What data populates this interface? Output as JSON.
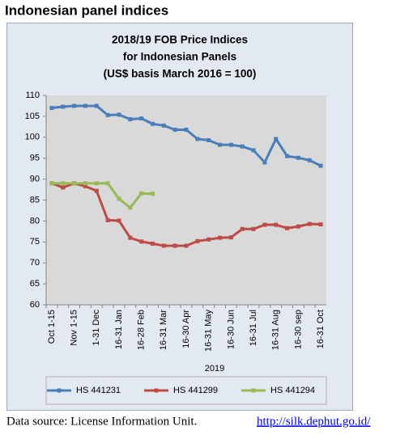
{
  "heading": "Indonesian panel indices",
  "chart_data": {
    "type": "line",
    "title": [
      "2018/19 FOB Price Indices",
      "for Indonesian Panels",
      "(US$ basis March 2016 = 100)"
    ],
    "x_label": "2019",
    "categories": [
      "Oct 1-15",
      null,
      "Nov 1-15",
      null,
      "1-31 Dec",
      null,
      "16-31 Jan",
      null,
      "16-28 Feb",
      null,
      "16-31 Mar",
      null,
      "16-30 Apr",
      null,
      "16-31 May",
      null,
      "16-30 Jun",
      null,
      "16-31 Jul",
      null,
      "16-31 Aug",
      null,
      "16-30 sep",
      null,
      "16-31 Oct"
    ],
    "series": [
      {
        "name": "HS 441231",
        "color": "#4a7ebb",
        "values": [
          107,
          107.3,
          107.5,
          107.5,
          107.5,
          105.3,
          105.4,
          104.3,
          104.5,
          103.2,
          102.8,
          101.8,
          101.8,
          99.6,
          99.3,
          98.2,
          98.2,
          97.8,
          96.9,
          94,
          99.6,
          95.5,
          95.1,
          94.5,
          93.2
        ]
      },
      {
        "name": "HS 441299",
        "color": "#be4b48",
        "values": [
          89,
          88,
          89,
          88.3,
          87.2,
          80.2,
          80.1,
          76,
          75.1,
          74.6,
          74.1,
          74.1,
          74.1,
          75.2,
          75.6,
          76,
          76.1,
          78.1,
          78.1,
          79.1,
          79.1,
          78.3,
          78.7,
          79.3,
          79.2
        ]
      },
      {
        "name": "HS 441294",
        "color": "#98b954",
        "values": [
          89,
          89,
          89,
          89,
          89,
          89,
          85.3,
          83.2,
          86.6,
          86.5,
          null,
          null,
          null,
          null,
          null,
          null,
          null,
          null,
          null,
          null,
          null,
          null,
          null,
          null,
          null
        ]
      }
    ],
    "ylim": [
      60,
      110
    ],
    "yticks": [
      60,
      65,
      70,
      75,
      80,
      85,
      90,
      95,
      100,
      105,
      110
    ],
    "grid": false,
    "legend": "bottom"
  },
  "footer": {
    "text": "Data source: License Information Unit.",
    "link": "http://silk.dephut.go.id/"
  }
}
